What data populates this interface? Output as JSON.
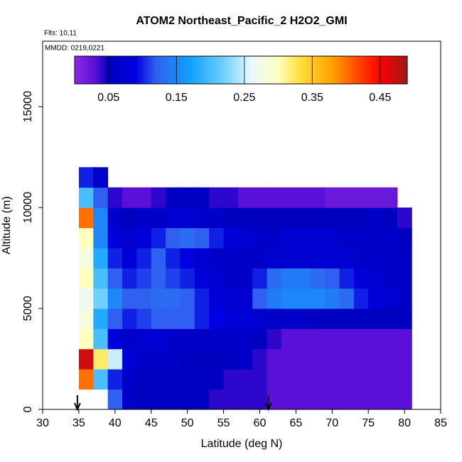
{
  "chart_data": {
    "type": "heatmap",
    "title": "ATOM2 Northeast_Pacific_2 H2O2_GMI",
    "annotations": [
      "Flts: 10,11",
      "MMDD: 0219,0221"
    ],
    "x_label": "Latitude (deg N)",
    "y_label": "Altitude (m)",
    "xlim": [
      30,
      85
    ],
    "xticks": [
      30,
      35,
      40,
      45,
      50,
      55,
      60,
      65,
      70,
      75,
      80,
      85
    ],
    "ylim": [
      0,
      18240
    ],
    "yticks": [
      0,
      5000,
      10000,
      15000
    ],
    "x_edges": [
      35,
      37,
      39,
      41,
      43,
      45,
      47,
      49,
      51,
      53,
      55,
      57,
      59,
      61,
      63,
      65,
      67,
      69,
      71,
      73,
      75,
      77,
      79,
      81
    ],
    "y_edges": [
      0,
      1000,
      2000,
      3000,
      4000,
      5000,
      6000,
      7000,
      8000,
      9000,
      10000,
      11000,
      12000
    ],
    "z": [
      [
        null,
        null,
        0.12,
        0.06,
        0.05,
        0.05,
        0.05,
        0.05,
        0.05,
        0.04,
        0.04,
        0.04,
        0.04,
        0.03,
        0.03,
        0.03,
        0.03,
        0.03,
        0.03,
        0.03,
        0.03,
        0.03,
        0.03
      ],
      [
        0.4,
        0.2,
        0.1,
        0.06,
        0.05,
        0.05,
        0.05,
        0.05,
        0.05,
        0.05,
        0.04,
        0.04,
        0.04,
        0.03,
        0.03,
        0.03,
        0.03,
        0.03,
        0.03,
        0.03,
        0.03,
        0.03,
        0.03
      ],
      [
        0.47,
        0.32,
        0.25,
        0.08,
        0.06,
        0.06,
        0.06,
        0.05,
        0.05,
        0.05,
        0.05,
        0.06,
        0.04,
        0.03,
        0.03,
        0.03,
        0.03,
        0.03,
        0.03,
        0.03,
        0.03,
        0.03,
        0.03
      ],
      [
        0.3,
        0.2,
        0.08,
        0.06,
        0.07,
        0.07,
        0.06,
        0.06,
        0.06,
        0.06,
        0.06,
        0.06,
        0.05,
        0.04,
        0.03,
        0.03,
        0.03,
        0.03,
        0.03,
        0.03,
        0.03,
        0.03,
        0.03
      ],
      [
        0.28,
        0.18,
        0.12,
        0.1,
        0.11,
        0.12,
        0.12,
        0.12,
        0.1,
        0.09,
        0.08,
        0.08,
        0.07,
        0.06,
        0.06,
        0.06,
        0.05,
        0.05,
        0.05,
        0.05,
        0.05,
        0.05,
        0.05
      ],
      [
        0.27,
        0.22,
        0.15,
        0.12,
        0.12,
        0.13,
        0.13,
        0.12,
        0.1,
        0.08,
        0.07,
        0.07,
        0.12,
        0.14,
        0.15,
        0.15,
        0.15,
        0.14,
        0.13,
        0.1,
        0.08,
        0.07,
        0.06
      ],
      [
        0.3,
        0.2,
        0.12,
        0.1,
        0.11,
        0.12,
        0.11,
        0.1,
        0.08,
        0.07,
        0.06,
        0.06,
        0.1,
        0.13,
        0.14,
        0.14,
        0.13,
        0.12,
        0.1,
        0.08,
        0.07,
        0.06,
        0.06
      ],
      [
        0.28,
        0.18,
        0.1,
        0.08,
        0.1,
        0.12,
        0.1,
        0.09,
        0.07,
        0.06,
        0.06,
        0.06,
        0.06,
        0.07,
        0.07,
        0.07,
        0.07,
        0.07,
        0.07,
        0.06,
        0.06,
        0.06,
        0.06
      ],
      [
        0.3,
        0.15,
        0.08,
        0.07,
        0.08,
        0.1,
        0.12,
        0.13,
        0.12,
        0.1,
        0.08,
        0.07,
        0.06,
        0.06,
        0.07,
        0.07,
        0.07,
        0.07,
        0.06,
        0.06,
        0.06,
        0.06,
        0.05
      ],
      [
        0.4,
        0.15,
        0.06,
        0.05,
        0.06,
        0.06,
        0.07,
        0.07,
        0.06,
        0.06,
        0.05,
        0.05,
        0.05,
        0.05,
        0.05,
        0.05,
        0.05,
        0.05,
        0.05,
        0.05,
        0.06,
        0.05,
        0.04
      ],
      [
        0.2,
        0.12,
        0.04,
        0.03,
        0.03,
        0.04,
        0.05,
        0.05,
        0.05,
        0.04,
        0.04,
        0.03,
        0.03,
        0.03,
        0.03,
        0.03,
        0.03,
        0.02,
        0.02,
        0.02,
        0.02,
        0.02,
        null
      ],
      [
        0.1,
        0.06,
        null,
        null,
        null,
        null,
        null,
        null,
        null,
        null,
        null,
        null,
        null,
        null,
        null,
        null,
        null,
        null,
        null,
        null,
        null,
        null,
        null
      ]
    ],
    "clim": [
      0,
      0.49
    ],
    "cticks": [
      0.05,
      0.15,
      0.25,
      0.35,
      0.45
    ],
    "colorscale": [
      [
        0,
        "#8a2be2"
      ],
      [
        0.03,
        "#5a10d8"
      ],
      [
        0.05,
        "#0000c0"
      ],
      [
        0.09,
        "#0000e0"
      ],
      [
        0.12,
        "#3060f0"
      ],
      [
        0.17,
        "#10a0ff"
      ],
      [
        0.22,
        "#70d0ff"
      ],
      [
        0.26,
        "#e8f8ff"
      ],
      [
        0.3,
        "#ffffc0"
      ],
      [
        0.33,
        "#ffe040"
      ],
      [
        0.38,
        "#ffa000"
      ],
      [
        0.42,
        "#ff4000"
      ],
      [
        0.45,
        "#ff0000"
      ],
      [
        0.49,
        "#a01818"
      ]
    ],
    "arrows_x": [
      34.8,
      61.2
    ]
  }
}
